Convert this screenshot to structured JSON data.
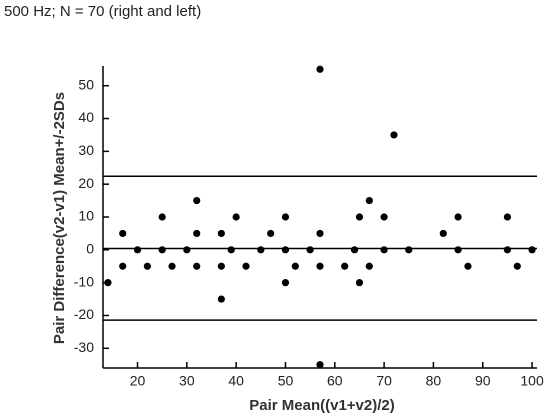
{
  "chart_data": {
    "type": "scatter",
    "title": "500 Hz; N = 70 (right and left)",
    "x_label": "Pair Mean((v1+v2)/2)",
    "y_label": "Pair Difference(v2-v1) Mean+/-2SDs",
    "color": "#000000",
    "x": [
      14,
      17,
      17,
      20,
      22,
      25,
      25,
      27,
      30,
      32,
      32,
      32,
      37,
      37,
      37,
      39,
      40,
      42,
      45,
      47,
      50,
      50,
      50,
      52,
      55,
      57,
      57,
      57,
      57,
      62,
      64,
      65,
      65,
      67,
      67,
      70,
      70,
      72,
      75,
      82,
      85,
      85,
      87,
      95,
      95,
      97,
      100
    ],
    "values": [
      -10,
      -5,
      5,
      0,
      -5,
      10,
      0,
      -5,
      0,
      15,
      5,
      -5,
      5,
      -5,
      -15,
      0,
      10,
      -5,
      0,
      5,
      10,
      0,
      -10,
      -5,
      0,
      55,
      5,
      -5,
      -35,
      -5,
      0,
      10,
      -10,
      15,
      -5,
      10,
      0,
      35,
      0,
      5,
      10,
      0,
      -5,
      10,
      0,
      -5,
      0
    ],
    "reference_lines": [
      22.4,
      0.4,
      -21.4
    ],
    "xlim": [
      13,
      101
    ],
    "ylim": [
      -36,
      56
    ],
    "xticks": [
      20,
      30,
      40,
      50,
      60,
      70,
      80,
      90,
      100
    ],
    "yticks": [
      -30,
      -20,
      -10,
      0,
      10,
      20,
      30,
      40,
      50
    ]
  }
}
